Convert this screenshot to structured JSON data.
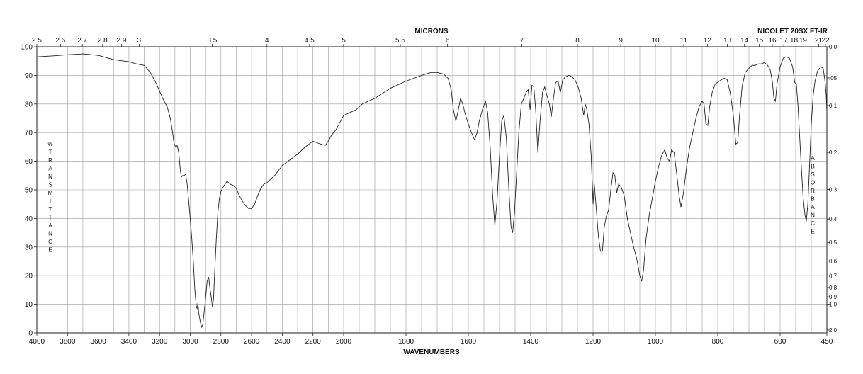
{
  "chart_data": {
    "type": "line",
    "instrument": "NICOLET 20SX FT-IR",
    "top_axis_title": "MICRONS",
    "bottom_axis_title": "WAVENUMBERS",
    "left_axis_label": "%TRANSMITTANCE",
    "right_axis_label": "ABSORBANCE",
    "xlim": [
      4000,
      450
    ],
    "ylim": [
      0,
      100
    ],
    "scale_break_wavenumber": 2000,
    "bottom_ticks": [
      4000,
      3800,
      3600,
      3400,
      3200,
      3000,
      2800,
      2600,
      2400,
      2200,
      2000,
      1800,
      1600,
      1400,
      1200,
      1000,
      800,
      600,
      450
    ],
    "left_ticks": [
      0,
      10,
      20,
      30,
      40,
      50,
      60,
      70,
      80,
      90,
      100
    ],
    "top_ticks": [
      {
        "label": "2.5",
        "um": 2.5
      },
      {
        "label": "2.6",
        "um": 2.6
      },
      {
        "label": "2.7",
        "um": 2.7
      },
      {
        "label": "2.8",
        "um": 2.8
      },
      {
        "label": "2.9",
        "um": 2.9
      },
      {
        "label": "3",
        "um": 3.0
      },
      {
        "label": "3.5",
        "um": 3.5
      },
      {
        "label": "4",
        "um": 4.0
      },
      {
        "label": "4.5",
        "um": 4.5
      },
      {
        "label": "5",
        "um": 5.0
      },
      {
        "label": "5.5",
        "um": 5.5
      },
      {
        "label": "6",
        "um": 6.0
      },
      {
        "label": "7",
        "um": 7.0
      },
      {
        "label": "8",
        "um": 8.0
      },
      {
        "label": "9",
        "um": 9.0
      },
      {
        "label": "10",
        "um": 10.0
      },
      {
        "label": "11",
        "um": 11.0
      },
      {
        "label": "12",
        "um": 12.0
      },
      {
        "label": "13",
        "um": 13.0
      },
      {
        "label": "14",
        "um": 14.0
      },
      {
        "label": "15",
        "um": 15.0
      },
      {
        "label": "16",
        "um": 16.0
      },
      {
        "label": "17",
        "um": 17.0
      },
      {
        "label": "18",
        "um": 18.0
      },
      {
        "label": "19",
        "um": 19.0
      },
      {
        "label": "21",
        "um": 21.0
      },
      {
        "label": "22",
        "um": 22.0
      }
    ],
    "absorbance_ticks": [
      {
        "label": "0.0",
        "a": 0.0
      },
      {
        "label": ".05",
        "a": 0.05
      },
      {
        "label": "0.1",
        "a": 0.1
      },
      {
        "label": "0.2",
        "a": 0.2
      },
      {
        "label": "0.3",
        "a": 0.3
      },
      {
        "label": "0.4",
        "a": 0.4
      },
      {
        "label": "0.5",
        "a": 0.5
      },
      {
        "label": "0.6",
        "a": 0.6
      },
      {
        "label": "0.7",
        "a": 0.7
      },
      {
        "label": "0.8",
        "a": 0.8
      },
      {
        "label": "0.9",
        "a": 0.9
      },
      {
        "label": "1.0",
        "a": 1.0
      },
      {
        "label": "2.0",
        "a": 2.0
      }
    ],
    "series": [
      {
        "points": [
          [
            4000,
            96.5
          ],
          [
            3900,
            96.8
          ],
          [
            3800,
            97.2
          ],
          [
            3700,
            97.5
          ],
          [
            3600,
            97.0
          ],
          [
            3500,
            95.5
          ],
          [
            3400,
            94.8
          ],
          [
            3350,
            94.0
          ],
          [
            3300,
            93.5
          ],
          [
            3260,
            91.0
          ],
          [
            3220,
            87.0
          ],
          [
            3180,
            82.0
          ],
          [
            3150,
            79.0
          ],
          [
            3130,
            75.0
          ],
          [
            3115,
            70.0
          ],
          [
            3105,
            66.0
          ],
          [
            3095,
            65.0
          ],
          [
            3085,
            65.5
          ],
          [
            3075,
            63.0
          ],
          [
            3065,
            57.0
          ],
          [
            3058,
            54.5
          ],
          [
            3050,
            55.0
          ],
          [
            3040,
            55.0
          ],
          [
            3030,
            55.5
          ],
          [
            3020,
            52.0
          ],
          [
            3010,
            46.0
          ],
          [
            3000,
            40.0
          ],
          [
            2990,
            33.0
          ],
          [
            2980,
            25.0
          ],
          [
            2970,
            15.0
          ],
          [
            2960,
            9.0
          ],
          [
            2955,
            8.5
          ],
          [
            2950,
            10.5
          ],
          [
            2945,
            7.0
          ],
          [
            2935,
            4.0
          ],
          [
            2926,
            2.0
          ],
          [
            2918,
            3.0
          ],
          [
            2910,
            7.0
          ],
          [
            2900,
            12.0
          ],
          [
            2890,
            18.0
          ],
          [
            2880,
            19.5
          ],
          [
            2870,
            15.0
          ],
          [
            2862,
            12.0
          ],
          [
            2855,
            9.0
          ],
          [
            2848,
            12.0
          ],
          [
            2840,
            22.0
          ],
          [
            2830,
            33.0
          ],
          [
            2820,
            42.0
          ],
          [
            2810,
            47.0
          ],
          [
            2800,
            49.5
          ],
          [
            2780,
            51.5
          ],
          [
            2760,
            53.0
          ],
          [
            2740,
            52.0
          ],
          [
            2720,
            51.5
          ],
          [
            2700,
            50.5
          ],
          [
            2680,
            48.0
          ],
          [
            2660,
            46.0
          ],
          [
            2640,
            44.5
          ],
          [
            2620,
            43.5
          ],
          [
            2600,
            43.5
          ],
          [
            2580,
            45.0
          ],
          [
            2560,
            48.0
          ],
          [
            2540,
            50.5
          ],
          [
            2520,
            52.0
          ],
          [
            2500,
            52.5
          ],
          [
            2450,
            55.0
          ],
          [
            2400,
            58.5
          ],
          [
            2350,
            60.5
          ],
          [
            2300,
            62.5
          ],
          [
            2250,
            65.0
          ],
          [
            2200,
            67.0
          ],
          [
            2150,
            66.0
          ],
          [
            2120,
            65.5
          ],
          [
            2100,
            67.0
          ],
          [
            2080,
            69.0
          ],
          [
            2050,
            71.0
          ],
          [
            2020,
            74.0
          ],
          [
            2000,
            76.0
          ],
          [
            1960,
            78.0
          ],
          [
            1940,
            80.0
          ],
          [
            1900,
            82.0
          ],
          [
            1850,
            85.5
          ],
          [
            1800,
            88.0
          ],
          [
            1750,
            90.0
          ],
          [
            1720,
            91.0
          ],
          [
            1700,
            91.0
          ],
          [
            1680,
            90.5
          ],
          [
            1665,
            89.0
          ],
          [
            1655,
            85.0
          ],
          [
            1648,
            78.0
          ],
          [
            1640,
            74.0
          ],
          [
            1632,
            78.0
          ],
          [
            1625,
            82.0
          ],
          [
            1618,
            80.0
          ],
          [
            1610,
            76.5
          ],
          [
            1600,
            73.0
          ],
          [
            1590,
            70.0
          ],
          [
            1580,
            67.5
          ],
          [
            1572,
            70.0
          ],
          [
            1565,
            74.0
          ],
          [
            1555,
            78.0
          ],
          [
            1545,
            81.0
          ],
          [
            1538,
            77.0
          ],
          [
            1530,
            65.0
          ],
          [
            1522,
            48.0
          ],
          [
            1515,
            37.5
          ],
          [
            1508,
            46.0
          ],
          [
            1500,
            62.0
          ],
          [
            1493,
            74.0
          ],
          [
            1486,
            76.0
          ],
          [
            1478,
            68.0
          ],
          [
            1470,
            50.0
          ],
          [
            1463,
            37.0
          ],
          [
            1458,
            35.0
          ],
          [
            1452,
            42.0
          ],
          [
            1445,
            56.0
          ],
          [
            1438,
            70.0
          ],
          [
            1430,
            80.0
          ],
          [
            1422,
            82.0
          ],
          [
            1415,
            84.0
          ],
          [
            1408,
            85.0
          ],
          [
            1402,
            78.0
          ],
          [
            1396,
            86.5
          ],
          [
            1390,
            86.0
          ],
          [
            1384,
            78.0
          ],
          [
            1377,
            63.0
          ],
          [
            1370,
            74.0
          ],
          [
            1362,
            84.0
          ],
          [
            1355,
            86.0
          ],
          [
            1348,
            83.0
          ],
          [
            1340,
            80.0
          ],
          [
            1334,
            75.5
          ],
          [
            1327,
            82.0
          ],
          [
            1320,
            87.5
          ],
          [
            1312,
            88.0
          ],
          [
            1305,
            84.0
          ],
          [
            1297,
            88.5
          ],
          [
            1288,
            89.5
          ],
          [
            1278,
            90.0
          ],
          [
            1268,
            89.5
          ],
          [
            1258,
            88.5
          ],
          [
            1248,
            86.0
          ],
          [
            1238,
            82.0
          ],
          [
            1230,
            76.0
          ],
          [
            1225,
            80.0
          ],
          [
            1220,
            78.0
          ],
          [
            1213,
            73.0
          ],
          [
            1206,
            62.0
          ],
          [
            1200,
            45.0
          ],
          [
            1196,
            52.0
          ],
          [
            1190,
            44.0
          ],
          [
            1183,
            34.0
          ],
          [
            1176,
            28.5
          ],
          [
            1170,
            28.5
          ],
          [
            1164,
            37.0
          ],
          [
            1158,
            40.5
          ],
          [
            1150,
            43.0
          ],
          [
            1143,
            50.0
          ],
          [
            1136,
            56.0
          ],
          [
            1130,
            55.0
          ],
          [
            1124,
            49.0
          ],
          [
            1118,
            52.0
          ],
          [
            1110,
            51.0
          ],
          [
            1100,
            48.0
          ],
          [
            1090,
            40.0
          ],
          [
            1080,
            35.0
          ],
          [
            1070,
            30.0
          ],
          [
            1060,
            26.0
          ],
          [
            1050,
            20.0
          ],
          [
            1044,
            18.0
          ],
          [
            1038,
            22.0
          ],
          [
            1030,
            33.0
          ],
          [
            1020,
            41.0
          ],
          [
            1010,
            47.0
          ],
          [
            1000,
            53.0
          ],
          [
            990,
            58.0
          ],
          [
            980,
            62.0
          ],
          [
            970,
            64.0
          ],
          [
            962,
            61.0
          ],
          [
            955,
            60.0
          ],
          [
            948,
            64.0
          ],
          [
            940,
            63.0
          ],
          [
            932,
            56.0
          ],
          [
            924,
            48.0
          ],
          [
            918,
            44.0
          ],
          [
            910,
            49.0
          ],
          [
            900,
            58.0
          ],
          [
            890,
            65.0
          ],
          [
            880,
            70.0
          ],
          [
            870,
            75.0
          ],
          [
            860,
            79.0
          ],
          [
            850,
            81.0
          ],
          [
            844,
            80.0
          ],
          [
            838,
            73.0
          ],
          [
            832,
            72.5
          ],
          [
            826,
            79.0
          ],
          [
            818,
            84.0
          ],
          [
            808,
            87.0
          ],
          [
            795,
            88.0
          ],
          [
            780,
            89.0
          ],
          [
            770,
            88.5
          ],
          [
            760,
            84.0
          ],
          [
            750,
            76.0
          ],
          [
            742,
            66.0
          ],
          [
            736,
            66.5
          ],
          [
            730,
            76.0
          ],
          [
            722,
            86.0
          ],
          [
            712,
            91.0
          ],
          [
            700,
            92.5
          ],
          [
            690,
            93.5
          ],
          [
            680,
            93.5
          ],
          [
            670,
            94.0
          ],
          [
            660,
            94.0
          ],
          [
            650,
            94.5
          ],
          [
            640,
            93.5
          ],
          [
            632,
            92.0
          ],
          [
            625,
            88.0
          ],
          [
            620,
            82.0
          ],
          [
            615,
            81.0
          ],
          [
            610,
            87.0
          ],
          [
            600,
            93.0
          ],
          [
            590,
            96.0
          ],
          [
            580,
            96.5
          ],
          [
            570,
            96.0
          ],
          [
            560,
            93.0
          ],
          [
            553,
            87.5
          ],
          [
            548,
            87.0
          ],
          [
            543,
            80.0
          ],
          [
            538,
            70.0
          ],
          [
            532,
            58.0
          ],
          [
            526,
            47.0
          ],
          [
            520,
            41.0
          ],
          [
            516,
            39.0
          ],
          [
            511,
            45.0
          ],
          [
            505,
            60.0
          ],
          [
            500,
            73.0
          ],
          [
            494,
            83.0
          ],
          [
            488,
            88.0
          ],
          [
            480,
            91.5
          ],
          [
            470,
            93.0
          ],
          [
            462,
            92.5
          ],
          [
            456,
            88.0
          ],
          [
            452,
            83.0
          ],
          [
            450,
            77.0
          ]
        ]
      }
    ]
  }
}
